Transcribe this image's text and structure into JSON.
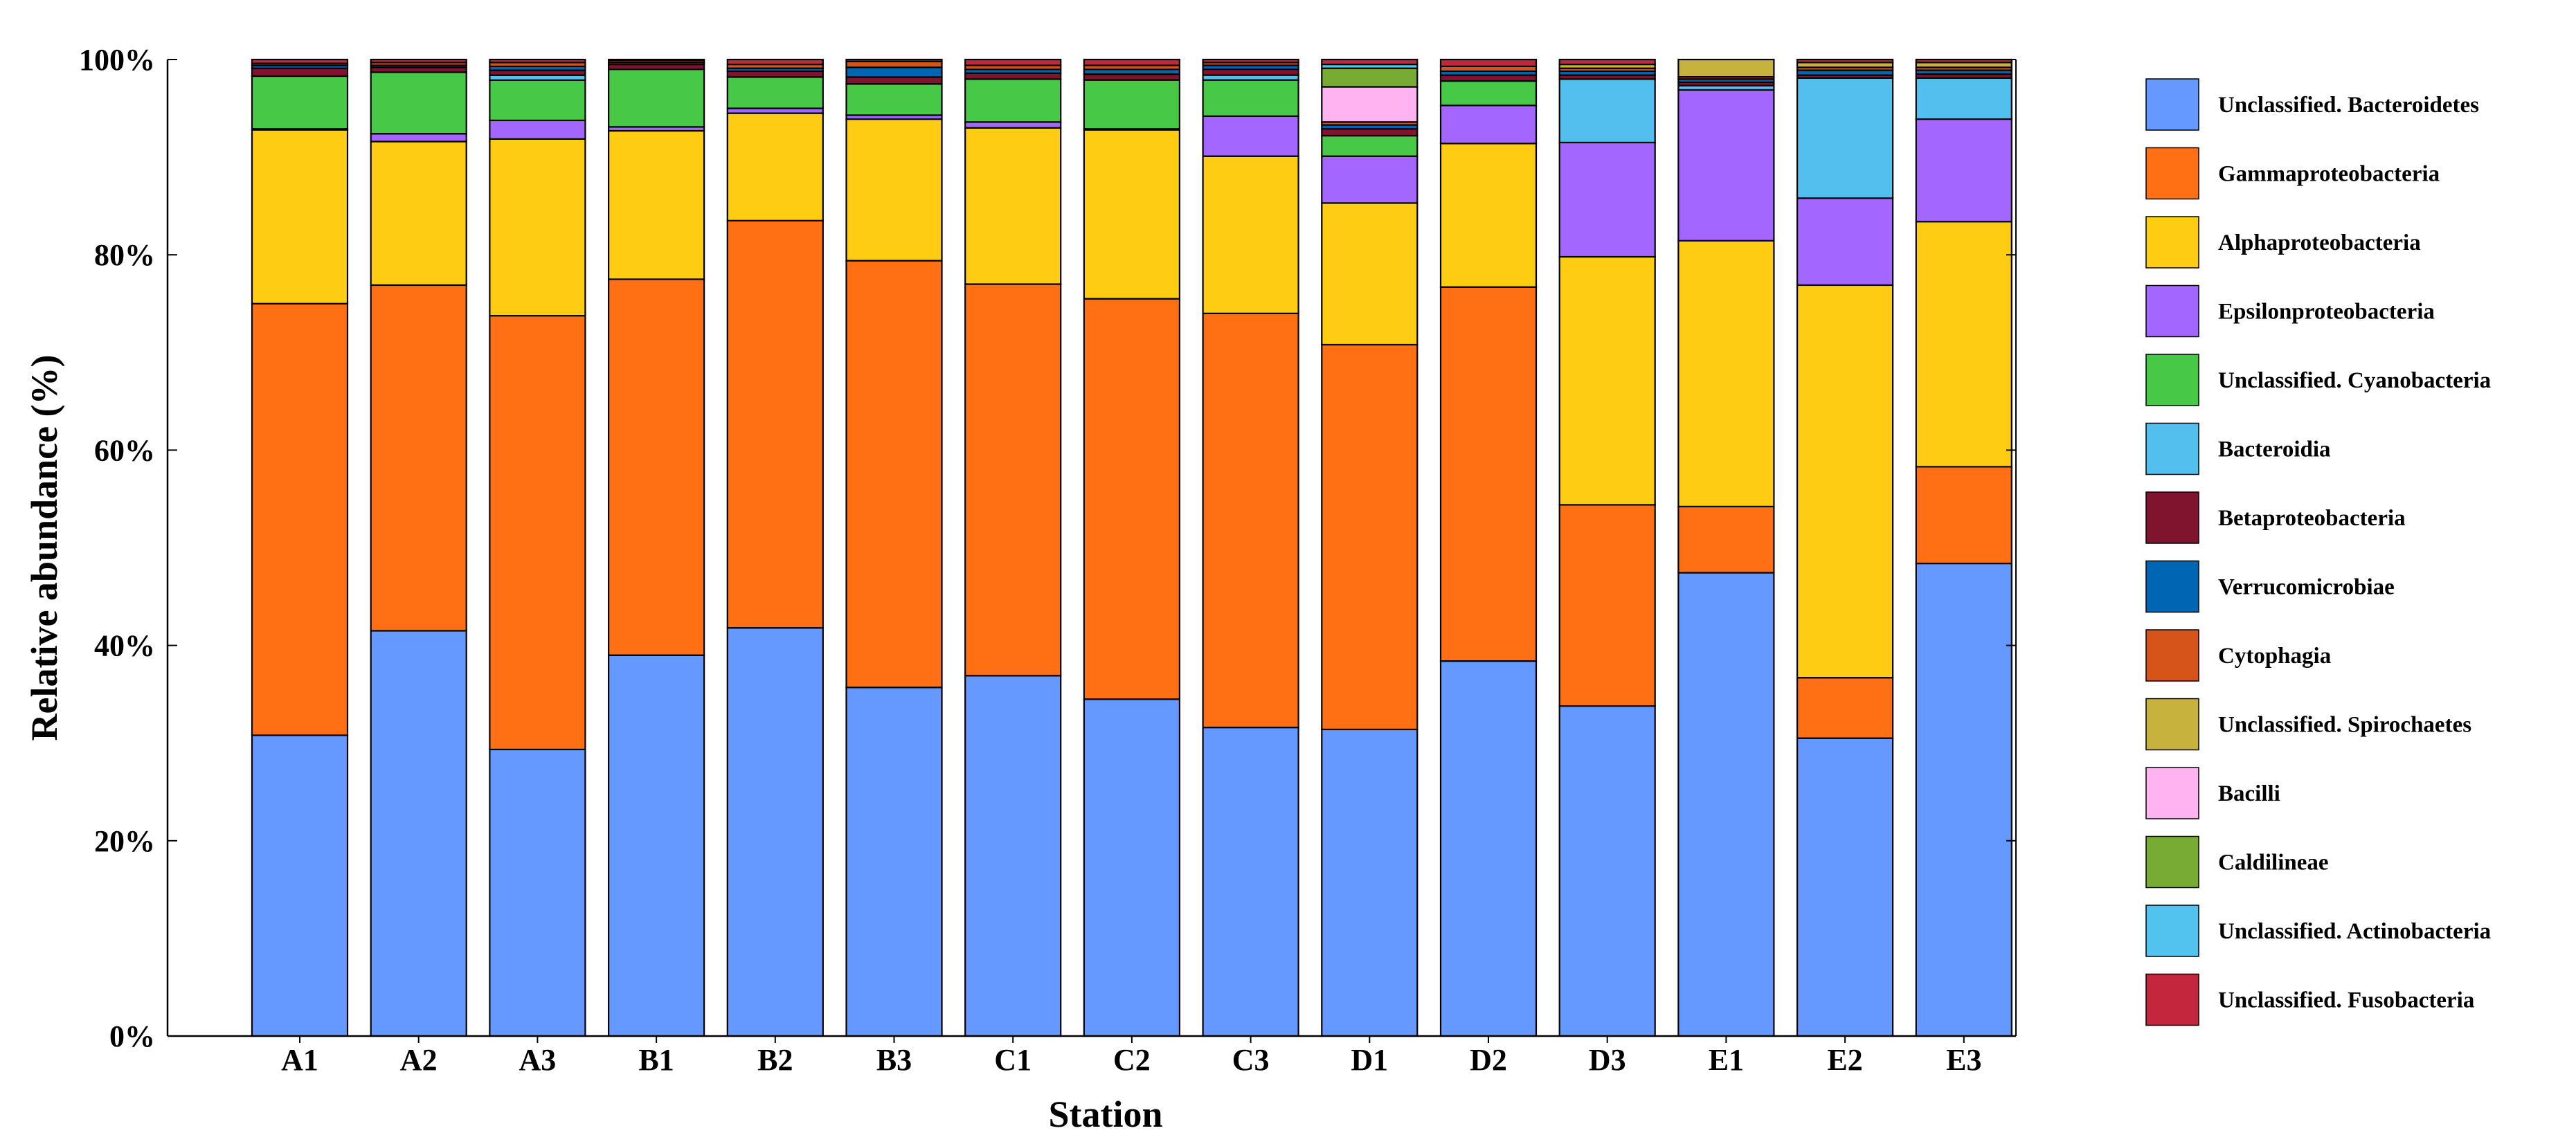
{
  "chart_data": {
    "type": "bar",
    "stacked": true,
    "normalized": true,
    "title": "",
    "xlabel": "Station",
    "ylabel": "Relative abundance (%)",
    "ylim": [
      0,
      100
    ],
    "yticks": [
      "0%",
      "20%",
      "40%",
      "60%",
      "80%",
      "100%"
    ],
    "categories": [
      "A1",
      "A2",
      "A3",
      "B1",
      "B2",
      "B3",
      "C1",
      "C2",
      "C3",
      "D1",
      "D2",
      "D3",
      "E1",
      "E2",
      "E3"
    ],
    "legend_position": "right",
    "series": [
      {
        "name": "Unclassified. Bacteroidetes",
        "color": "#6699ff",
        "values": [
          30.8,
          41.5,
          29.2,
          39.0,
          41.8,
          35.7,
          36.9,
          34.5,
          31.6,
          31.4,
          38.4,
          33.8,
          42.7,
          30.5,
          48.4
        ]
      },
      {
        "name": "Gammaproteobacteria",
        "color": "#ff7014",
        "values": [
          44.2,
          35.4,
          44.2,
          38.5,
          41.7,
          43.7,
          40.1,
          41.0,
          42.4,
          39.4,
          38.3,
          20.6,
          6.1,
          6.2,
          9.9
        ]
      },
      {
        "name": "Alphaproteobacteria",
        "color": "#ffcc14",
        "values": [
          17.8,
          14.7,
          18.0,
          15.2,
          11.0,
          14.5,
          16.0,
          17.3,
          16.1,
          14.5,
          14.7,
          25.4,
          24.5,
          40.2,
          25.1
        ]
      },
      {
        "name": "Epsilonproteobacteria",
        "color": "#a366ff",
        "values": [
          0.1,
          0.8,
          1.9,
          0.4,
          0.5,
          0.4,
          0.6,
          0.1,
          4.1,
          4.8,
          3.9,
          11.7,
          13.9,
          8.9,
          10.5
        ]
      },
      {
        "name": "Unclassified. Cyanobacteria",
        "color": "#47c947",
        "values": [
          5.4,
          6.3,
          4.1,
          5.9,
          3.2,
          3.2,
          4.4,
          5.0,
          3.7,
          2.1,
          2.5,
          0.0,
          0.0,
          0.0,
          0.0
        ]
      },
      {
        "name": "Bacteroidia",
        "color": "#52bfef",
        "values": [
          0.0,
          0.0,
          0.5,
          0.0,
          0.0,
          0.0,
          0.0,
          0.0,
          0.5,
          0.0,
          0.0,
          6.5,
          0.4,
          12.3,
          4.2
        ]
      },
      {
        "name": "Betaproteobacteria",
        "color": "#80142e",
        "values": [
          0.8,
          0.5,
          0.5,
          0.5,
          0.6,
          0.7,
          0.6,
          0.6,
          0.6,
          0.7,
          0.6,
          0.4,
          0.3,
          0.3,
          0.4
        ]
      },
      {
        "name": "Verrucomicrobiae",
        "color": "#0066b3",
        "values": [
          0.3,
          0.2,
          0.4,
          0.2,
          0.3,
          1.0,
          0.4,
          0.5,
          0.4,
          0.4,
          0.4,
          0.4,
          0.3,
          0.5,
          0.4
        ]
      },
      {
        "name": "Cytophagia",
        "color": "#d6541a",
        "values": [
          0.2,
          0.3,
          0.4,
          0.2,
          0.4,
          0.6,
          0.4,
          0.4,
          0.3,
          0.3,
          0.5,
          0.3,
          0.2,
          0.3,
          0.3
        ]
      },
      {
        "name": "Unclassified. Spirochaetes",
        "color": "#c7b23d",
        "values": [
          0.0,
          0.0,
          0.0,
          0.0,
          0.0,
          0.0,
          0.0,
          0.0,
          0.0,
          0.0,
          0.0,
          0.4,
          1.6,
          0.5,
          0.5
        ]
      },
      {
        "name": "Bacilli",
        "color": "#ffb3f0",
        "values": [
          0.0,
          0.0,
          0.0,
          0.0,
          0.0,
          0.0,
          0.0,
          0.0,
          0.0,
          3.6,
          0.0,
          0.0,
          0.0,
          0.0,
          0.0
        ]
      },
      {
        "name": "Caldilineae",
        "color": "#78ab33",
        "values": [
          0.0,
          0.0,
          0.0,
          0.0,
          0.0,
          0.0,
          0.0,
          0.0,
          0.0,
          1.9,
          0.0,
          0.0,
          0.0,
          0.0,
          0.0
        ]
      },
      {
        "name": "Unclassified. Actinobacteria",
        "color": "#52c2ef",
        "values": [
          0.0,
          0.0,
          0.0,
          0.0,
          0.0,
          0.0,
          0.0,
          0.0,
          0.0,
          0.4,
          0.0,
          0.0,
          0.0,
          0.0,
          0.0
        ]
      },
      {
        "name": "Unclassified. Fusobacteria",
        "color": "#c4263d",
        "values": [
          0.4,
          0.3,
          0.3,
          0.1,
          0.5,
          0.2,
          0.6,
          0.6,
          0.3,
          0.5,
          0.7,
          0.5,
          0.0,
          0.3,
          0.3
        ]
      }
    ]
  }
}
